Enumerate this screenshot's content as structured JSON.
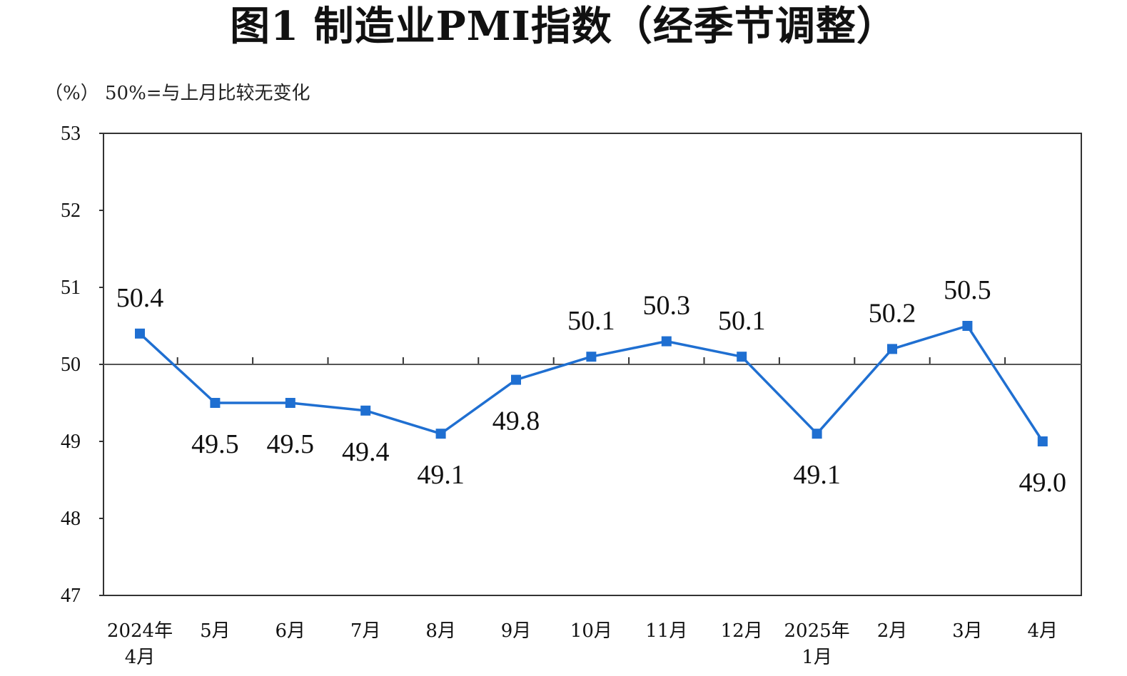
{
  "chart_data": {
    "type": "line",
    "title": "图1 制造业PMI指数（经季节调整）",
    "unit_label": "（%）",
    "reference_note": "50%=与上月比较无变化",
    "reference_value": 50,
    "ylim": [
      47,
      53
    ],
    "yticks": [
      47,
      48,
      49,
      50,
      51,
      52,
      53
    ],
    "categories": [
      [
        "2024年",
        "4月"
      ],
      [
        "5月"
      ],
      [
        "6月"
      ],
      [
        "7月"
      ],
      [
        "8月"
      ],
      [
        "9月"
      ],
      [
        "10月"
      ],
      [
        "11月"
      ],
      [
        "12月"
      ],
      [
        "2025年",
        "1月"
      ],
      [
        "2月"
      ],
      [
        "3月"
      ],
      [
        "4月"
      ]
    ],
    "series": [
      {
        "values": [
          50.4,
          49.5,
          49.5,
          49.4,
          49.1,
          49.8,
          50.1,
          50.3,
          50.1,
          49.1,
          50.2,
          50.5,
          49.0
        ],
        "value_labels": [
          "50.4",
          "49.5",
          "49.5",
          "49.4",
          "49.1",
          "49.8",
          "50.1",
          "50.3",
          "50.1",
          "49.1",
          "50.2",
          "50.5",
          "49.0"
        ],
        "label_positions": [
          "above",
          "below",
          "below",
          "below",
          "below",
          "below",
          "above",
          "above",
          "above",
          "below",
          "above",
          "above",
          "below"
        ],
        "color": "#1f6fd1"
      }
    ],
    "grid": false,
    "legend": "none"
  }
}
